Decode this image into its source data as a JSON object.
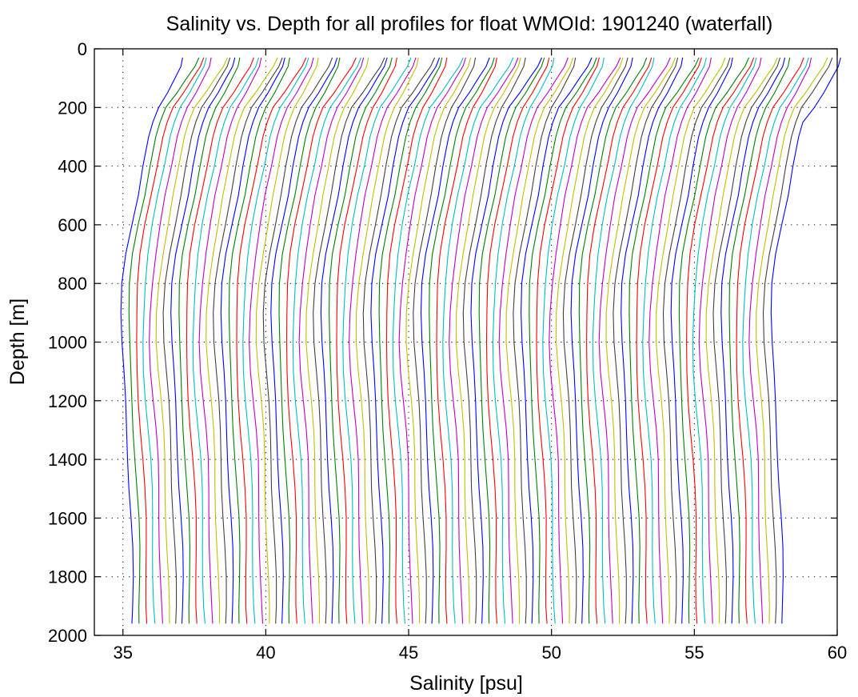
{
  "chart_data": {
    "type": "line",
    "title": "Salinity vs. Depth for all profiles for float WMOId: 1901240 (waterfall)",
    "xlabel": "Salinity [psu]",
    "ylabel": "Depth [m]",
    "xlim": [
      34,
      60
    ],
    "ylim": [
      0,
      2000
    ],
    "y_reversed": true,
    "grid": true,
    "grid_style": "dotted",
    "x_ticks": [
      35,
      40,
      45,
      50,
      55,
      60
    ],
    "y_ticks": [
      0,
      200,
      400,
      600,
      800,
      1000,
      1200,
      1400,
      1600,
      1800,
      2000
    ],
    "waterfall_offset_psu": 0.25,
    "series_count": 92,
    "color_cycle": [
      "#0000ff",
      "#008000",
      "#ff0000",
      "#00bfbf",
      "#bf00bf",
      "#bfbf00",
      "#404040"
    ],
    "profile_depths": [
      30,
      60,
      100,
      150,
      200,
      250,
      300,
      400,
      500,
      600,
      700,
      800,
      900,
      1000,
      1100,
      1200,
      1300,
      1400,
      1500,
      1600,
      1700,
      1800,
      1900,
      1960
    ],
    "base_profile_salinity": [
      37.25,
      37.15,
      36.9,
      36.6,
      36.25,
      36.05,
      35.9,
      35.7,
      35.5,
      35.3,
      35.12,
      35.0,
      34.95,
      34.95,
      35.0,
      35.07,
      35.14,
      35.2,
      35.24,
      35.28,
      35.31,
      35.33,
      35.34,
      35.35
    ],
    "first_profile_surface_salinity": 37.25,
    "last_profile_surface_salinity": 59.8,
    "last_profile_bottom_salinity": 57.4
  }
}
